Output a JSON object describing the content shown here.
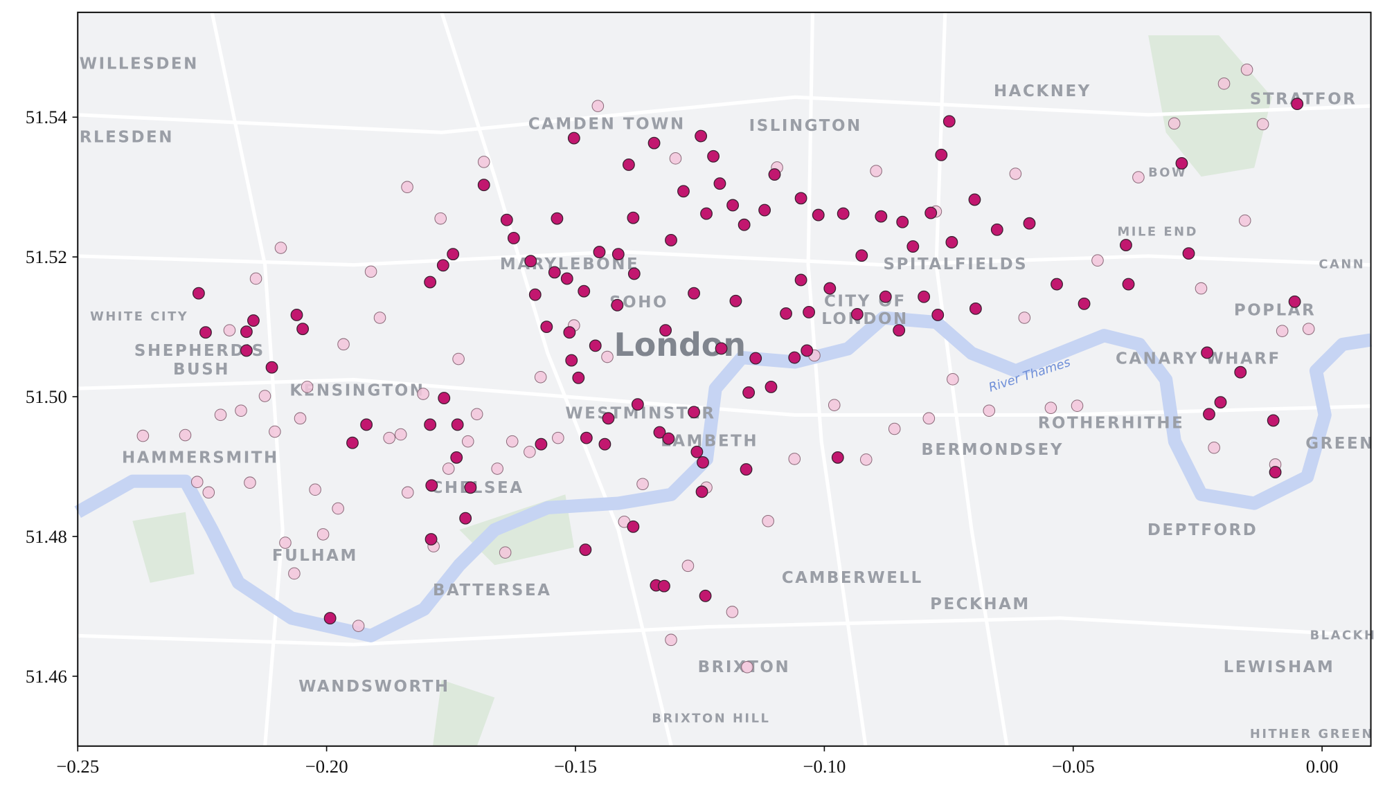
{
  "chart_data": {
    "type": "scatter",
    "xlim": [
      -0.25,
      0.0098
    ],
    "ylim": [
      51.45,
      51.555
    ],
    "xticks": [
      {
        "value": -0.25,
        "label": "−0.25"
      },
      {
        "value": -0.2,
        "label": "−0.20"
      },
      {
        "value": -0.15,
        "label": "−0.15"
      },
      {
        "value": -0.1,
        "label": "−0.10"
      },
      {
        "value": -0.05,
        "label": "−0.05"
      },
      {
        "value": 0,
        "label": "0.00"
      }
    ],
    "yticks": [
      51.46,
      51.48,
      {
        "value": 51.5,
        "label": "51.50"
      },
      51.52,
      51.54
    ],
    "map_labels": [
      "WILLESDEN",
      "RLESDEN",
      "HACKNEY",
      "STRATFOR",
      "CAMDEN TOWN",
      "ISLINGTON",
      "WHITE CITY",
      "SHEPHERD'S",
      "BUSH",
      "MARYLEBONE",
      "SOHO",
      "London",
      "CITY OF",
      "LONDON",
      "SPITALFIELDS",
      "MILE END",
      "BOW",
      "POPLAR",
      "CANN",
      "CANARY WHARF",
      "KENSINGTON",
      "WESTMINSTER",
      "LAMBETH",
      "River Thames",
      "ROTHERHITHE",
      "BERMONDSEY",
      "GREEN",
      "HAMMERSMITH",
      "CHELSEA",
      "FULHAM",
      "BATTERSEA",
      "DEPTFORD",
      "CAMBERWELL",
      "PECKHAM",
      "BRIXTON",
      "BRIXTON HILL",
      "WANDSWORTH",
      "BLACKH",
      "LEWISHAM",
      "HITHER GREEN"
    ],
    "series": [
      {
        "color": "#f3c6da",
        "x": [
          -0.2369,
          -0.2284,
          -0.226,
          -0.2237,
          -0.2213,
          -0.2195,
          -0.2172,
          -0.2154,
          -0.2142,
          -0.2124,
          -0.2104,
          -0.2092,
          -0.2083,
          -0.2065,
          -0.2053,
          -0.2039,
          -0.2023,
          -0.2007,
          -0.1977,
          -0.1966,
          -0.1936,
          -0.1911,
          -0.1893,
          -0.1874,
          -0.1851,
          -0.1838,
          -0.1837,
          -0.1806,
          -0.1785,
          -0.1771,
          -0.1755,
          -0.1735,
          -0.1716,
          -0.1698,
          -0.1684,
          -0.1657,
          -0.1641,
          -0.1627,
          -0.1592,
          -0.157,
          -0.1535,
          -0.1503,
          -0.1455,
          -0.1436,
          -0.1402,
          -0.1365,
          -0.1308,
          -0.1299,
          -0.1274,
          -0.1237,
          -0.1185,
          -0.1155,
          -0.1113,
          -0.106,
          -0.102,
          -0.098,
          -0.0916,
          -0.0859,
          -0.079,
          -0.0742,
          -0.0669,
          -0.0598,
          -0.0545,
          -0.0492,
          -0.0451,
          -0.0369,
          -0.0297,
          -0.0243,
          -0.0197,
          -0.0151,
          -0.0119,
          -0.008,
          -0.0027,
          -0.0155,
          -0.0616,
          -0.0896,
          -0.1095,
          -0.0776,
          -0.0217,
          -0.0094
        ],
        "y": [
          51.4944,
          51.4945,
          51.4878,
          51.4863,
          51.4974,
          51.5095,
          51.498,
          51.4877,
          51.5169,
          51.5001,
          51.495,
          51.5213,
          51.4791,
          51.4747,
          51.4969,
          51.5014,
          51.4867,
          51.4803,
          51.484,
          51.5075,
          51.4672,
          51.5179,
          51.5113,
          51.4941,
          51.4946,
          51.53,
          51.4863,
          51.5004,
          51.4786,
          51.5255,
          51.4897,
          51.5054,
          51.4936,
          51.4975,
          51.5336,
          51.4897,
          51.4777,
          51.4936,
          51.4921,
          51.5028,
          51.4941,
          51.5102,
          51.5416,
          51.5057,
          51.4821,
          51.4875,
          51.4652,
          51.5341,
          51.4758,
          51.487,
          51.4692,
          51.4613,
          51.4822,
          51.4911,
          51.5059,
          51.4988,
          51.491,
          51.4954,
          51.4969,
          51.5025,
          51.498,
          51.5113,
          51.4984,
          51.4987,
          51.5195,
          51.5314,
          51.5391,
          51.5155,
          51.5448,
          51.5468,
          51.539,
          51.5094,
          51.5097,
          51.5252,
          51.5319,
          51.5323,
          51.5328,
          51.5265,
          51.4927,
          51.4903
        ]
      },
      {
        "color": "#c2176f",
        "x": [
          -0.2257,
          -0.2243,
          -0.2161,
          -0.2161,
          -0.2147,
          -0.211,
          -0.206,
          -0.2048,
          -0.192,
          -0.1948,
          -0.1993,
          -0.1792,
          -0.1789,
          -0.1737,
          -0.1739,
          -0.1721,
          -0.1711,
          -0.179,
          -0.1764,
          -0.1792,
          -0.1766,
          -0.1746,
          -0.1684,
          -0.1638,
          -0.1624,
          -0.159,
          -0.1581,
          -0.1558,
          -0.1569,
          -0.1537,
          -0.1542,
          -0.1517,
          -0.1512,
          -0.1508,
          -0.1494,
          -0.1503,
          -0.148,
          -0.1478,
          -0.1483,
          -0.146,
          -0.1452,
          -0.1441,
          -0.1434,
          -0.1416,
          -0.1414,
          -0.1393,
          -0.1384,
          -0.1382,
          -0.1375,
          -0.1384,
          -0.1342,
          -0.1338,
          -0.1322,
          -0.1331,
          -0.1319,
          -0.1313,
          -0.1308,
          -0.1283,
          -0.1262,
          -0.1256,
          -0.1244,
          -0.1239,
          -0.1246,
          -0.1262,
          -0.1248,
          -0.1237,
          -0.1223,
          -0.121,
          -0.1207,
          -0.1184,
          -0.1178,
          -0.1161,
          -0.1157,
          -0.1152,
          -0.1138,
          -0.112,
          -0.1107,
          -0.11,
          -0.1077,
          -0.106,
          -0.1047,
          -0.1047,
          -0.1035,
          -0.1031,
          -0.1012,
          -0.0989,
          -0.0973,
          -0.0962,
          -0.0934,
          -0.0925,
          -0.0886,
          -0.0877,
          -0.085,
          -0.0843,
          -0.0822,
          -0.08,
          -0.0786,
          -0.0772,
          -0.0749,
          -0.0765,
          -0.0744,
          -0.0698,
          -0.0696,
          -0.0653,
          -0.0588,
          -0.0533,
          -0.0478,
          -0.0394,
          -0.0389,
          -0.0282,
          -0.0268,
          -0.0231,
          -0.0227,
          -0.0204,
          -0.0164,
          -0.0098,
          -0.0094,
          -0.0055,
          -0.005
        ],
        "y": [
          51.5148,
          51.5092,
          51.5093,
          51.5066,
          51.5109,
          51.5042,
          51.5117,
          51.5097,
          51.496,
          51.4934,
          51.4683,
          51.496,
          51.4873,
          51.496,
          51.4913,
          51.4826,
          51.487,
          51.4796,
          51.4998,
          51.5164,
          51.5188,
          51.5204,
          51.5303,
          51.5253,
          51.5227,
          51.5194,
          51.5146,
          51.51,
          51.4932,
          51.5255,
          51.5178,
          51.5169,
          51.5092,
          51.5052,
          51.5027,
          51.537,
          51.4781,
          51.4941,
          51.5151,
          51.5073,
          51.5207,
          51.4932,
          51.4969,
          51.5131,
          51.5204,
          51.5332,
          51.5256,
          51.5176,
          51.4989,
          51.4814,
          51.5363,
          51.473,
          51.4729,
          51.4949,
          51.5095,
          51.494,
          51.5224,
          51.5294,
          51.5148,
          51.4921,
          51.4906,
          51.4715,
          51.4864,
          51.4978,
          51.5373,
          51.5262,
          51.5344,
          51.5305,
          51.5069,
          51.5274,
          51.5137,
          51.5246,
          51.4896,
          51.5006,
          51.5055,
          51.5267,
          51.5014,
          51.5318,
          51.5119,
          51.5056,
          51.5167,
          51.5284,
          51.5066,
          51.5121,
          51.526,
          51.5155,
          51.4913,
          51.5262,
          51.5118,
          51.5202,
          51.5258,
          51.5143,
          51.5095,
          51.525,
          51.5215,
          51.5143,
          51.5263,
          51.5117,
          51.5394,
          51.5346,
          51.5221,
          51.5282,
          51.5126,
          51.5239,
          51.5248,
          51.5161,
          51.5133,
          51.5217,
          51.5161,
          51.5334,
          51.5205,
          51.5063,
          51.4975,
          51.4992,
          51.5035,
          51.4966,
          51.4892,
          51.5136,
          51.5419
        ]
      }
    ]
  }
}
